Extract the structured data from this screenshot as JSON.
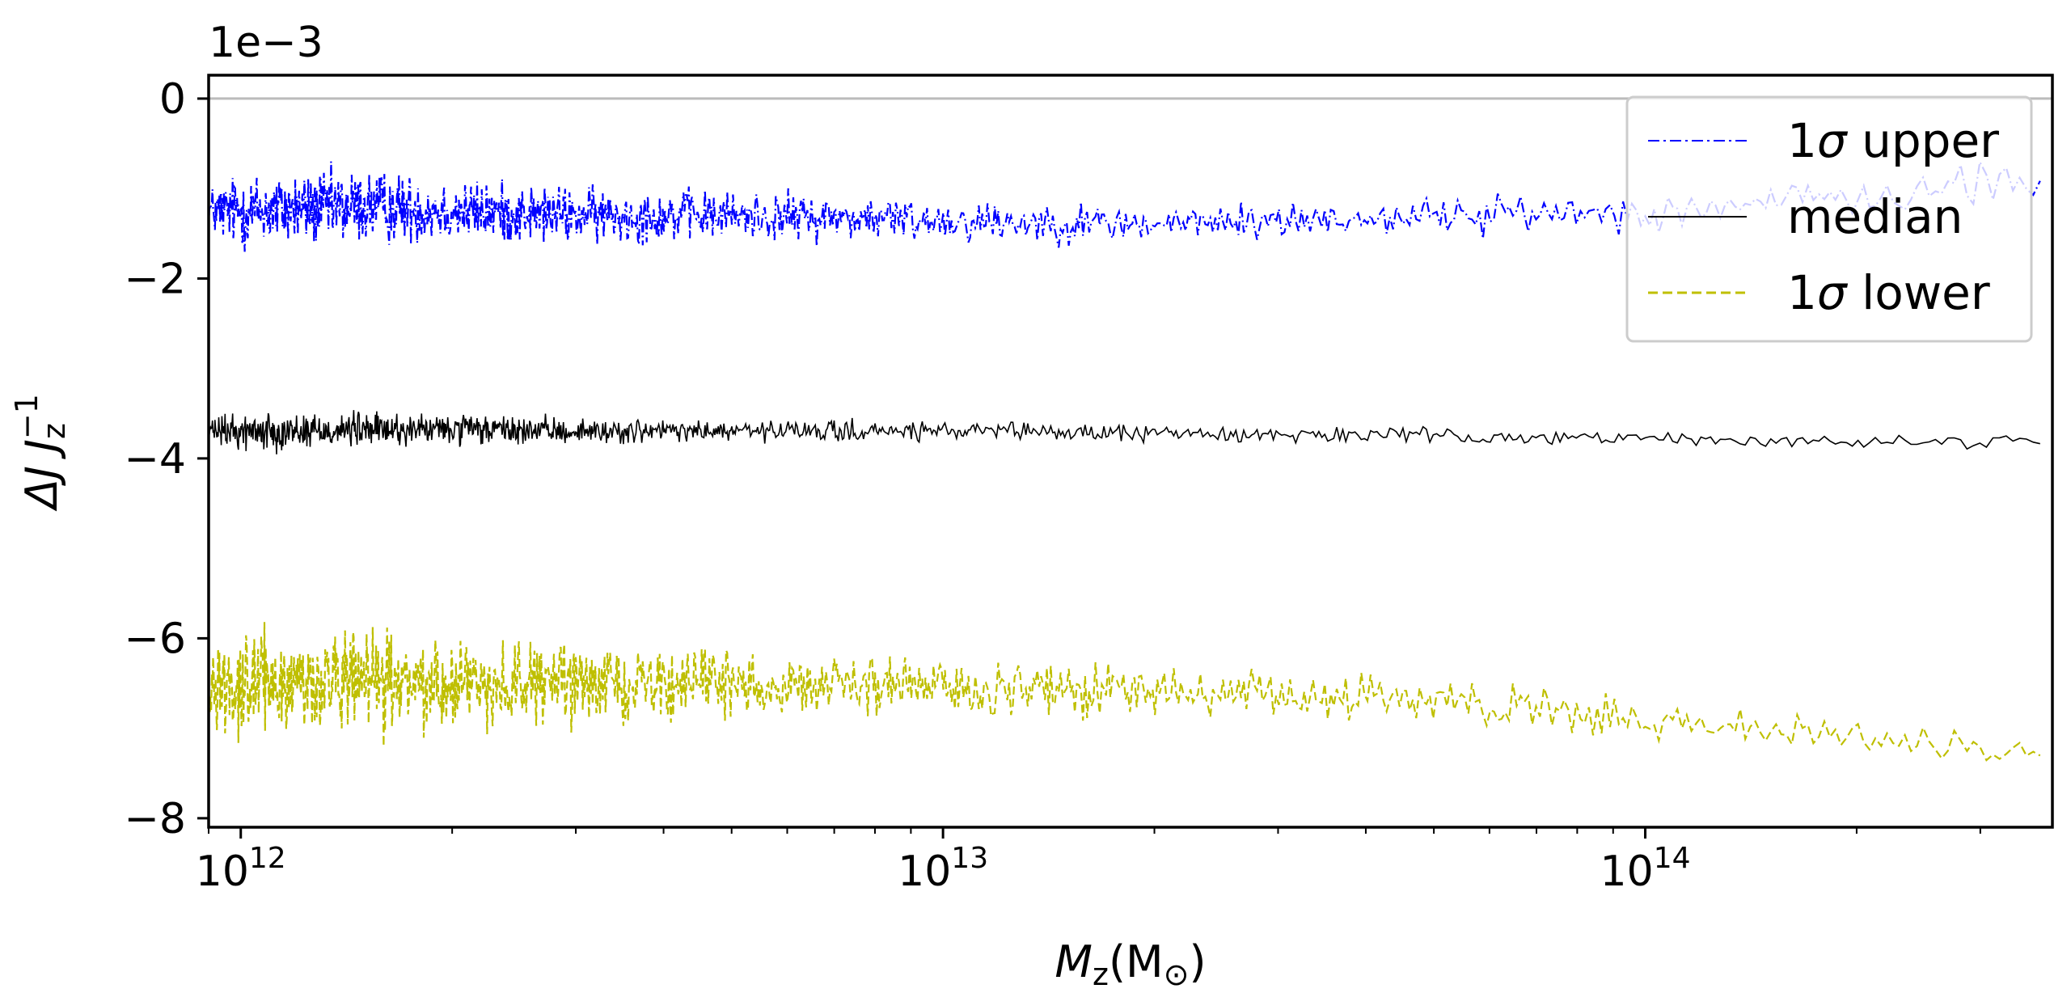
{
  "chart_data": {
    "type": "line",
    "x_scale": "log",
    "xlim": [
      900000000000,
      380000000000000
    ],
    "ylim": [
      -0.0081,
      0.00026
    ],
    "y_offset_text": "1e−3",
    "y_ticks": [
      0,
      -2,
      -4,
      -6,
      -8
    ],
    "y_tick_labels": [
      "0",
      "−2",
      "−4",
      "−6",
      "−8"
    ],
    "x_ticks": [
      {
        "value": 1000000000000,
        "base": "10",
        "exp": "12"
      },
      {
        "value": 10000000000000,
        "base": "10",
        "exp": "13"
      },
      {
        "value": 100000000000000,
        "base": "10",
        "exp": "14"
      }
    ],
    "xlabel": {
      "main": "M",
      "sub": "z",
      "open": "(M",
      "sun": "⊙",
      "close": ")"
    },
    "ylabel": {
      "delta": "ΔJ J",
      "sub": "z",
      "sup": "−1"
    },
    "reference_line": {
      "y": 0,
      "color": "#bbbbbb"
    },
    "grid": false,
    "legend_position": "top-right",
    "series": [
      {
        "name": "1σ upper",
        "name_sigma": "σ",
        "name_pre": "1",
        "name_post": " upper",
        "color": "#0000ff",
        "style": "dashdot",
        "x": [
          900000000000,
          1000000000000,
          1500000000000,
          2000000000000,
          3000000000000,
          5000000000000,
          10000000000000,
          20000000000000,
          50000000000000,
          100000000000000,
          200000000000000,
          370000000000000
        ],
        "y": [
          -0.00125,
          -0.00125,
          -0.0012,
          -0.00125,
          -0.0013,
          -0.0013,
          -0.00135,
          -0.0014,
          -0.0013,
          -0.00125,
          -0.0011,
          -0.0009
        ],
        "spread": [
          0.0004,
          0.0006,
          0.0006,
          0.0005,
          0.00045,
          0.0004,
          0.00035,
          0.0003,
          0.0003,
          0.0003,
          0.00032,
          0.00035
        ]
      },
      {
        "name": "median",
        "color": "#000000",
        "style": "solid",
        "x": [
          900000000000,
          1000000000000,
          1500000000000,
          2000000000000,
          3000000000000,
          5000000000000,
          10000000000000,
          20000000000000,
          50000000000000,
          100000000000000,
          200000000000000,
          370000000000000
        ],
        "y": [
          -0.0037,
          -0.0037,
          -0.00368,
          -0.00368,
          -0.0037,
          -0.0037,
          -0.0037,
          -0.00372,
          -0.00375,
          -0.00378,
          -0.00382,
          -0.0038
        ],
        "spread": [
          0.0002,
          0.0003,
          0.00028,
          0.00025,
          0.0002,
          0.00018,
          0.00015,
          0.00013,
          0.00012,
          0.0001,
          0.0001,
          0.0001
        ]
      },
      {
        "name": "1σ lower",
        "name_sigma": "σ",
        "name_pre": "1",
        "name_post": " lower",
        "color": "#bfbf00",
        "style": "dashed",
        "x": [
          900000000000,
          1000000000000,
          1500000000000,
          2000000000000,
          3000000000000,
          5000000000000,
          10000000000000,
          20000000000000,
          50000000000000,
          100000000000000,
          200000000000000,
          370000000000000
        ],
        "y": [
          -0.0065,
          -0.0065,
          -0.0065,
          -0.0065,
          -0.0065,
          -0.0065,
          -0.00655,
          -0.0066,
          -0.0067,
          -0.0069,
          -0.0071,
          -0.0073
        ],
        "spread": [
          0.0006,
          0.0008,
          0.0008,
          0.0007,
          0.0006,
          0.0005,
          0.00045,
          0.0004,
          0.00035,
          0.0003,
          0.0003,
          0.0003
        ]
      }
    ]
  }
}
